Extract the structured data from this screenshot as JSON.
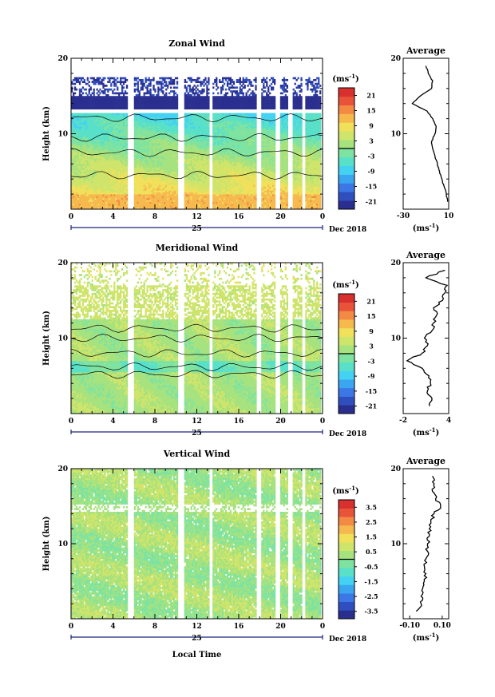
{
  "date_label": "Dec 2018",
  "day_label": "25",
  "x_axis_label": "Local Time",
  "x_ticks": [
    "0",
    "4",
    "8",
    "12",
    "16",
    "20",
    "0"
  ],
  "colorscale": [
    "#2a2f8f",
    "#2f4fbf",
    "#3b78e6",
    "#3aa6f0",
    "#44d2f2",
    "#58e0c8",
    "#7ee3a0",
    "#a6e27e",
    "#cfe46a",
    "#f0e05a",
    "#f6b94e",
    "#f38a44",
    "#e8533a",
    "#d7302d"
  ],
  "chart_data": [
    {
      "type": "heatmap",
      "title": "Zonal Wind",
      "ylabel": "Height (km)",
      "xlim": [
        0,
        24
      ],
      "ylim": [
        0,
        20
      ],
      "yticks": [
        "20",
        "10"
      ],
      "colorbar": {
        "unit": "(ms-1)",
        "ticks": [
          "21",
          "15",
          "9",
          "3",
          "-3",
          "-9",
          "-15",
          "-21"
        ],
        "range": [
          -24,
          24
        ]
      },
      "data_gaps_local_time": [
        [
          5.4,
          5.9
        ],
        [
          10.2,
          10.7
        ],
        [
          13.1,
          13.5
        ],
        [
          17.7,
          18.1
        ],
        [
          19.4,
          19.8
        ],
        [
          20.6,
          21.0
        ],
        [
          21.9,
          22.3
        ],
        [
          23.8,
          24.0
        ]
      ],
      "profile": {
        "title": "Average",
        "xlabel": "(ms-1)",
        "xticks": [
          "-30",
          "10"
        ],
        "xlim": [
          -30,
          10
        ],
        "height": [
          1,
          2,
          3,
          4,
          5,
          6,
          7,
          8,
          9,
          10,
          11,
          12,
          13,
          14,
          15,
          16,
          17,
          18,
          19
        ],
        "values": [
          9,
          8,
          6,
          4,
          2,
          0,
          -2,
          -4,
          -5,
          -2,
          -1,
          -4,
          -9,
          -22,
          -15,
          -5,
          -4,
          -8,
          -10
        ]
      }
    },
    {
      "type": "heatmap",
      "title": "Meridional Wind",
      "ylabel": "Height (km)",
      "xlim": [
        0,
        24
      ],
      "ylim": [
        0,
        20
      ],
      "yticks": [
        "20",
        "10"
      ],
      "colorbar": {
        "unit": "(ms-1)",
        "ticks": [
          "21",
          "15",
          "9",
          "3",
          "-3",
          "-9",
          "-15",
          "-21"
        ],
        "range": [
          -24,
          24
        ]
      },
      "data_gaps_local_time": [
        [
          5.4,
          5.9
        ],
        [
          10.2,
          10.7
        ],
        [
          13.1,
          13.5
        ],
        [
          17.7,
          18.1
        ],
        [
          19.4,
          19.8
        ],
        [
          20.6,
          21.0
        ],
        [
          21.9,
          22.3
        ],
        [
          23.8,
          24.0
        ]
      ],
      "profile": {
        "title": "Average",
        "xlabel": "(ms-1)",
        "xticks": [
          "-2",
          "4"
        ],
        "xlim": [
          -2,
          4
        ],
        "height": [
          1,
          2,
          3,
          4,
          5,
          6,
          7,
          8,
          9,
          10,
          11,
          12,
          13,
          14,
          15,
          16,
          17,
          18,
          19
        ],
        "values": [
          1.5,
          1.8,
          1.2,
          1.6,
          1.4,
          0.5,
          -1.5,
          0.5,
          1.2,
          0.8,
          1.8,
          2.0,
          2.4,
          2.0,
          3.2,
          3.5,
          3.8,
          1.0,
          3.5
        ]
      }
    },
    {
      "type": "heatmap",
      "title": "Vertical Wind",
      "ylabel": "Height (km)",
      "xlim": [
        0,
        24
      ],
      "ylim": [
        0,
        20
      ],
      "yticks": [
        "20",
        "10"
      ],
      "colorbar": {
        "unit": "(ms-1)",
        "ticks": [
          "3.5",
          "2.5",
          "1.5",
          "0.5",
          "-0.5",
          "-1.5",
          "-2.5",
          "-3.5"
        ],
        "range": [
          -4,
          4
        ]
      },
      "data_gaps_local_time": [
        [
          5.4,
          5.9
        ],
        [
          10.2,
          10.7
        ],
        [
          13.1,
          13.5
        ],
        [
          17.7,
          18.1
        ],
        [
          19.4,
          19.8
        ],
        [
          20.6,
          21.0
        ],
        [
          21.9,
          22.3
        ],
        [
          23.8,
          24.0
        ]
      ],
      "profile": {
        "title": "Average",
        "xlabel": "(ms-1)",
        "xticks": [
          "-0.10",
          "0.10"
        ],
        "xlim": [
          -0.14,
          0.14
        ],
        "height": [
          1,
          2,
          3,
          4,
          5,
          6,
          7,
          8,
          9,
          10,
          11,
          12,
          13,
          14,
          15,
          16,
          17,
          18,
          19
        ],
        "values": [
          -0.06,
          -0.03,
          -0.03,
          -0.02,
          -0.01,
          0.0,
          -0.01,
          0.0,
          0.01,
          0.01,
          0.02,
          0.02,
          0.03,
          0.05,
          0.09,
          0.06,
          0.04,
          0.05,
          0.04
        ]
      }
    }
  ]
}
